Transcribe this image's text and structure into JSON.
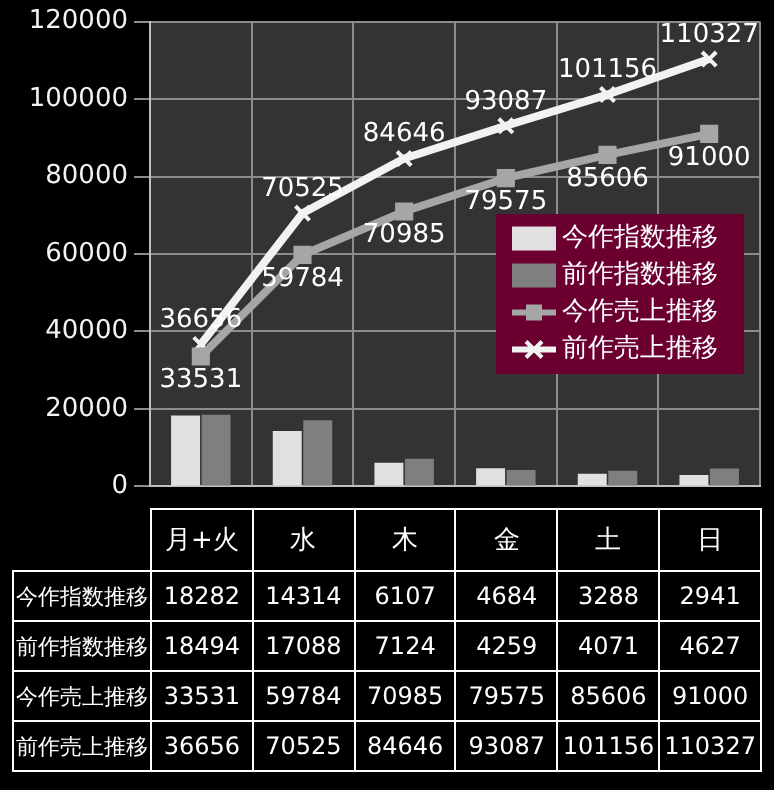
{
  "chart_data": {
    "type": "bar",
    "categories": [
      "月+火",
      "水",
      "木",
      "金",
      "土",
      "日"
    ],
    "series": [
      {
        "name": "今作指数推移",
        "color": "#e0e0e0",
        "values": [
          18282,
          14314,
          6107,
          4684,
          3288,
          2941
        ]
      },
      {
        "name": "前作指数推移",
        "color": "#7f7f7f",
        "values": [
          18494,
          17088,
          7124,
          4259,
          4071,
          4627
        ]
      },
      {
        "name": "今作売上推移",
        "type": "line",
        "color": "#a6a6a6",
        "marker": "square",
        "values": [
          33531,
          59784,
          70985,
          79575,
          85606,
          91000
        ]
      },
      {
        "name": "前作売上推移",
        "type": "line",
        "color": "#f2f2f2",
        "marker": "cross",
        "values": [
          36656,
          70525,
          84646,
          93087,
          101156,
          110327
        ]
      }
    ],
    "annotations": [
      {
        "text": "33531",
        "x": "月+火",
        "y": 33531
      },
      {
        "text": "59784",
        "x": "水",
        "y": 59784
      },
      {
        "text": "70985",
        "x": "木",
        "y": 70985
      },
      {
        "text": "79575",
        "x": "金",
        "y": 79575
      },
      {
        "text": "85606",
        "x": "土",
        "y": 85606
      },
      {
        "text": "91000",
        "x": "日",
        "y": 91000
      },
      {
        "text": "36656",
        "x": "月+火",
        "y": 36656
      },
      {
        "text": "70525",
        "x": "水",
        "y": 70525
      },
      {
        "text": "84646",
        "x": "木",
        "y": 84646
      },
      {
        "text": "93087",
        "x": "金",
        "y": 93087
      },
      {
        "text": "101156",
        "x": "土",
        "y": 101156
      },
      {
        "text": "110327",
        "x": "日",
        "y": 110327
      }
    ],
    "ylim": [
      0,
      120000
    ],
    "yticks": [
      0,
      20000,
      40000,
      60000,
      80000,
      100000,
      120000
    ],
    "grid": true,
    "legend": "right",
    "data_labels": true
  }
}
